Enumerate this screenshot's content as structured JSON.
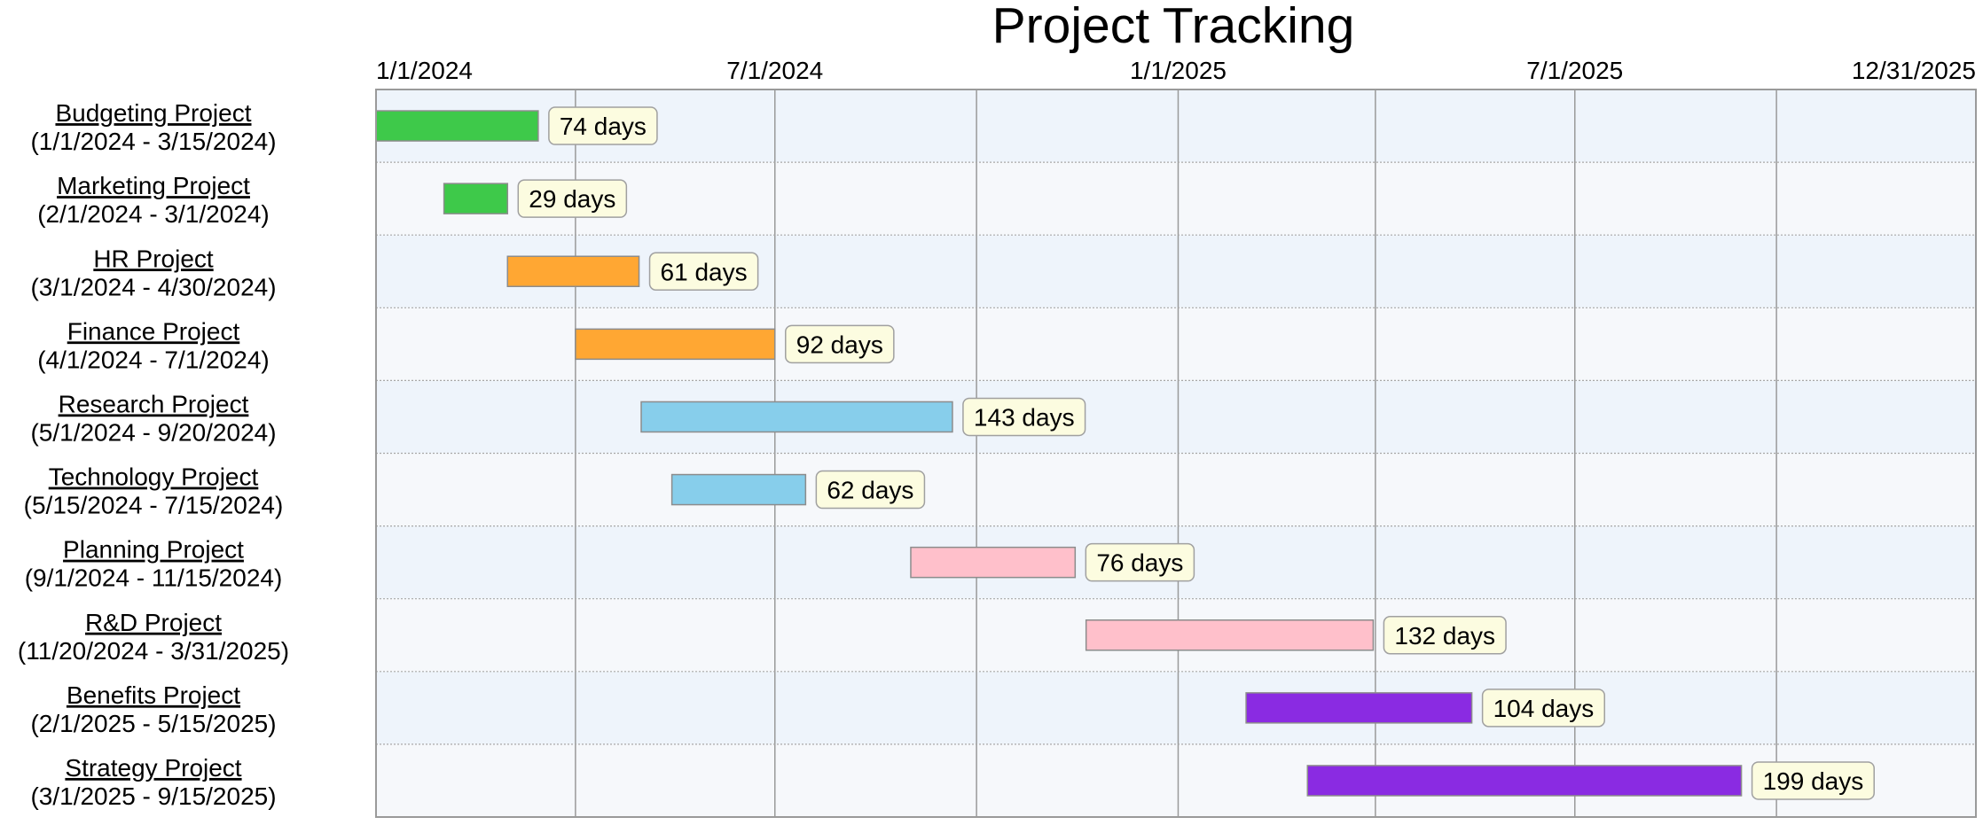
{
  "chart_data": {
    "type": "bar",
    "orientation": "horizontal-gantt",
    "title": "Project Tracking",
    "xlabel": "",
    "ylabel": "",
    "x_axis": {
      "min": "2024-01-01",
      "max": "2025-12-31",
      "tick_labels": [
        "1/1/2024",
        "7/1/2024",
        "1/1/2025",
        "7/1/2025",
        "12/31/2025"
      ],
      "position": "top"
    },
    "grid": true,
    "legend": "none",
    "tasks": [
      {
        "name": "Budgeting Project",
        "range_label": "(1/1/2024 - 3/15/2024)",
        "start": "2024-01-01",
        "end": "2024-03-15",
        "duration": 74,
        "duration_label": "74 days",
        "color": "#3ec94a"
      },
      {
        "name": "Marketing Project",
        "range_label": "(2/1/2024 - 3/1/2024)",
        "start": "2024-02-01",
        "end": "2024-03-01",
        "duration": 29,
        "duration_label": "29 days",
        "color": "#3ec94a"
      },
      {
        "name": "HR Project",
        "range_label": "(3/1/2024 - 4/30/2024)",
        "start": "2024-03-01",
        "end": "2024-04-30",
        "duration": 61,
        "duration_label": "61 days",
        "color": "#ffa733"
      },
      {
        "name": "Finance Project",
        "range_label": "(4/1/2024 - 7/1/2024)",
        "start": "2024-04-01",
        "end": "2024-07-01",
        "duration": 92,
        "duration_label": "92 days",
        "color": "#ffa733"
      },
      {
        "name": "Research Project",
        "range_label": "(5/1/2024 - 9/20/2024)",
        "start": "2024-05-01",
        "end": "2024-09-20",
        "duration": 143,
        "duration_label": "143 days",
        "color": "#87ceeb"
      },
      {
        "name": "Technology Project",
        "range_label": "(5/15/2024 - 7/15/2024)",
        "start": "2024-05-15",
        "end": "2024-07-15",
        "duration": 62,
        "duration_label": "62 days",
        "color": "#87ceeb"
      },
      {
        "name": "Planning Project",
        "range_label": "(9/1/2024 - 11/15/2024)",
        "start": "2024-09-01",
        "end": "2024-11-15",
        "duration": 76,
        "duration_label": "76 days",
        "color": "#ffc0cb"
      },
      {
        "name": "R&D Project",
        "range_label": "(11/20/2024 - 3/31/2025)",
        "start": "2024-11-20",
        "end": "2025-03-31",
        "duration": 132,
        "duration_label": "132 days",
        "color": "#ffc0cb"
      },
      {
        "name": "Benefits Project",
        "range_label": "(2/1/2025 - 5/15/2025)",
        "start": "2025-02-01",
        "end": "2025-05-15",
        "duration": 104,
        "duration_label": "104 days",
        "color": "#8a2be2"
      },
      {
        "name": "Strategy Project",
        "range_label": "(3/1/2025 - 9/15/2025)",
        "start": "2025-03-01",
        "end": "2025-09-15",
        "duration": 199,
        "duration_label": "199 days",
        "color": "#8a2be2"
      }
    ],
    "colors": {
      "row_even": "#eef4fb",
      "row_odd": "#f6f8fb",
      "vgrid": "#9a9a9a",
      "hgrid": "#a8a8a8",
      "frame": "#9a9a9a",
      "bar_border": "#8c8c8c",
      "badge_fill": "#fcfce0",
      "badge_border": "#a0a0a0"
    }
  }
}
